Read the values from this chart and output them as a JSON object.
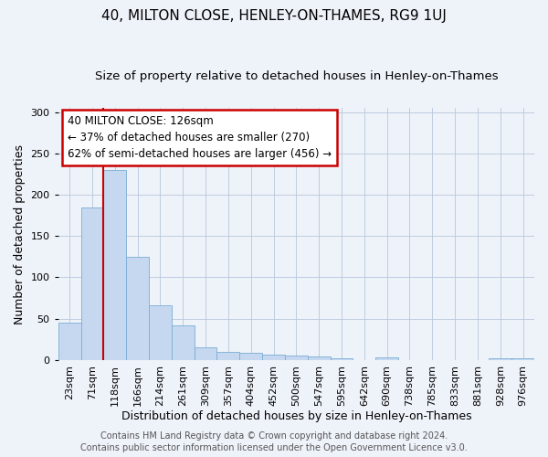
{
  "title1": "40, MILTON CLOSE, HENLEY-ON-THAMES, RG9 1UJ",
  "title2": "Size of property relative to detached houses in Henley-on-Thames",
  "xlabel": "Distribution of detached houses by size in Henley-on-Thames",
  "ylabel": "Number of detached properties",
  "categories": [
    "23sqm",
    "71sqm",
    "118sqm",
    "166sqm",
    "214sqm",
    "261sqm",
    "309sqm",
    "357sqm",
    "404sqm",
    "452sqm",
    "500sqm",
    "547sqm",
    "595sqm",
    "642sqm",
    "690sqm",
    "738sqm",
    "785sqm",
    "833sqm",
    "881sqm",
    "928sqm",
    "976sqm"
  ],
  "values": [
    45,
    185,
    230,
    125,
    66,
    42,
    15,
    10,
    9,
    7,
    5,
    4,
    2,
    0,
    3,
    0,
    0,
    0,
    0,
    2,
    2
  ],
  "bar_color": "#c5d8ef",
  "bar_edge_color": "#7aaed4",
  "bar_width": 1.0,
  "vline_x_index": 2,
  "vline_color": "#cc0000",
  "annotation_text": "40 MILTON CLOSE: 126sqm\n← 37% of detached houses are smaller (270)\n62% of semi-detached houses are larger (456) →",
  "annotation_box_color": "#ffffff",
  "annotation_box_edge": "#cc0000",
  "ylim": [
    0,
    305
  ],
  "yticks": [
    0,
    50,
    100,
    150,
    200,
    250,
    300
  ],
  "footer_text": "Contains HM Land Registry data © Crown copyright and database right 2024.\nContains public sector information licensed under the Open Government Licence v3.0.",
  "bg_color": "#eef2f9",
  "title1_fontsize": 11,
  "title2_fontsize": 9.5,
  "xlabel_fontsize": 9,
  "ylabel_fontsize": 9,
  "tick_fontsize": 8,
  "footer_fontsize": 7
}
